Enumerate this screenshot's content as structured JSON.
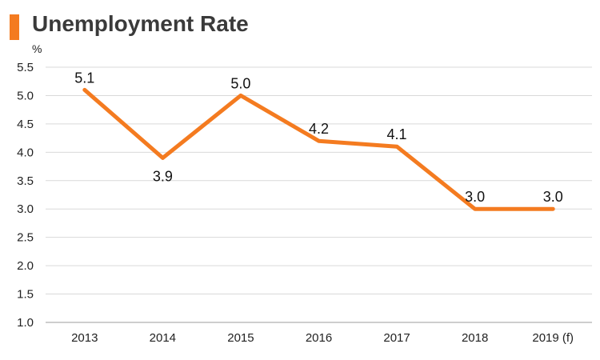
{
  "chart_data": {
    "type": "line",
    "title": "Unemployment Rate",
    "ylabel": "%",
    "xlabel": "",
    "categories": [
      "2013",
      "2014",
      "2015",
      "2016",
      "2017",
      "2018",
      "2019 (f)"
    ],
    "values": [
      5.1,
      3.9,
      5.0,
      4.2,
      4.1,
      3.0,
      3.0
    ],
    "data_labels": [
      "5.1",
      "3.9",
      "5.0",
      "4.2",
      "4.1",
      "3.0",
      "3.0"
    ],
    "label_position": [
      "above",
      "below",
      "above",
      "above",
      "above",
      "above",
      "above"
    ],
    "ylim": [
      1.0,
      5.5
    ],
    "yticks": [
      "1.0",
      "1.5",
      "2.0",
      "2.5",
      "3.0",
      "3.5",
      "4.0",
      "4.5",
      "5.0",
      "5.5"
    ],
    "grid": true,
    "colors": {
      "line": "#f47b20",
      "grid": "#d9d9d9",
      "accent": "#f47b20"
    }
  }
}
